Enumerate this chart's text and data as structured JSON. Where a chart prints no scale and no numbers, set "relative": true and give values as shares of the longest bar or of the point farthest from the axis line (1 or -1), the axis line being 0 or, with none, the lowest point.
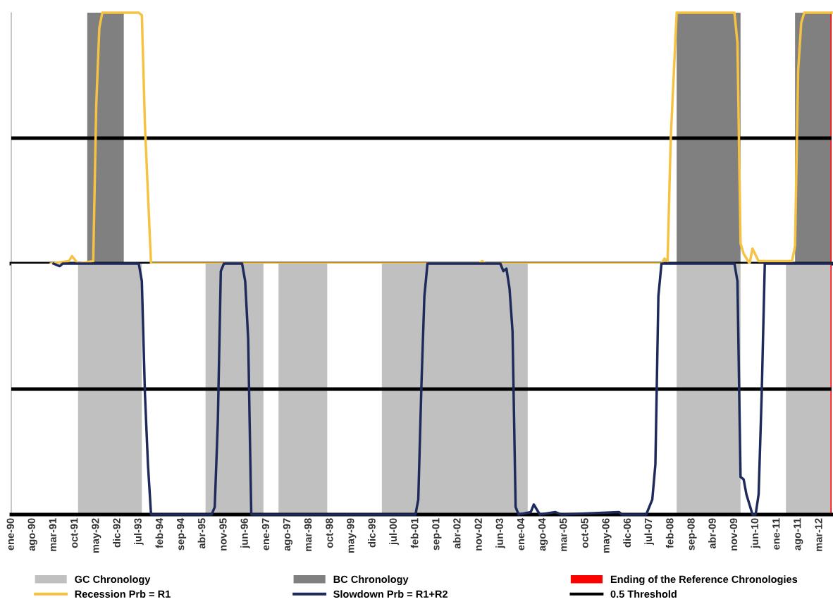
{
  "chart_data": [
    {
      "type": "line",
      "relative": true,
      "xlim": [
        "1990-01",
        "2012-07"
      ],
      "tick_labels": false,
      "grid": false,
      "legend": "bottom",
      "bands": [
        {
          "axis": "x",
          "from": "1992-02",
          "to": "1993-02",
          "label": "BC Chronology",
          "color": "#808080"
        },
        {
          "axis": "x",
          "from": "2008-04",
          "to": "2010-01",
          "color": "#808080"
        },
        {
          "axis": "x",
          "from": "2011-07",
          "to": "2012-07",
          "color": "#808080"
        },
        {
          "axis": "x",
          "from": "2012-06-20",
          "to": "2012-07",
          "label": "Ending of the Reference Chronologies",
          "color": "#ff0000"
        }
      ],
      "ref_lines": [
        {
          "axis": "y",
          "value": 0.5,
          "color": "#000000",
          "line_style": "solid"
        }
      ],
      "series": [
        {
          "name": "Recession Prb = R1",
          "color": "#f5c242",
          "x": [
            "1991-02",
            "1991-08",
            "1991-09",
            "1991-11",
            "1992-04",
            "1992-05",
            "1992-06",
            "1992-07",
            "1993-07",
            "1993-08",
            "1993-09",
            "1993-11",
            "2002-11",
            "2002-12",
            "2003-01",
            "2007-11",
            "2007-12",
            "2008-01",
            "2008-02",
            "2008-04",
            "2009-11",
            "2009-12",
            "2010-01",
            "2010-02",
            "2010-04",
            "2010-05",
            "2010-07",
            "2011-06",
            "2011-07",
            "2011-08",
            "2011-09",
            "2011-10",
            "2012-07"
          ],
          "values": [
            0,
            0.01,
            0.03,
            0,
            0.01,
            0.63,
            0.94,
            1,
            1,
            0.99,
            0.55,
            0,
            0,
            0.01,
            0,
            0,
            0.02,
            0.01,
            0.49,
            1,
            1,
            0.88,
            0.08,
            0.04,
            0,
            0.06,
            0.01,
            0.01,
            0.07,
            0.77,
            0.96,
            1,
            1
          ]
        }
      ]
    },
    {
      "type": "line",
      "relative": true,
      "xlim": [
        "1990-01",
        "2012-07"
      ],
      "tick_labels": "x",
      "grid": false,
      "legend": "bottom",
      "xticks": [
        {
          "value": "1990-01",
          "label": "ene-90"
        },
        {
          "value": "1990-08",
          "label": "ago-90"
        },
        {
          "value": "1991-03",
          "label": "mar-91"
        },
        {
          "value": "1991-10",
          "label": "oct-91"
        },
        {
          "value": "1992-05",
          "label": "may-92"
        },
        {
          "value": "1992-12",
          "label": "dic-92"
        },
        {
          "value": "1993-07",
          "label": "jul-93"
        },
        {
          "value": "1994-02",
          "label": "feb-94"
        },
        {
          "value": "1994-09",
          "label": "sep-94"
        },
        {
          "value": "1995-04",
          "label": "abr-95"
        },
        {
          "value": "1995-11",
          "label": "nov-95"
        },
        {
          "value": "1996-06",
          "label": "jun-96"
        },
        {
          "value": "1997-01",
          "label": "ene-97"
        },
        {
          "value": "1997-08",
          "label": "ago-97"
        },
        {
          "value": "1998-03",
          "label": "mar-98"
        },
        {
          "value": "1998-10",
          "label": "oct-98"
        },
        {
          "value": "1999-05",
          "label": "may-99"
        },
        {
          "value": "1999-12",
          "label": "dic-99"
        },
        {
          "value": "2000-07",
          "label": "jul-00"
        },
        {
          "value": "2001-02",
          "label": "feb-01"
        },
        {
          "value": "2001-09",
          "label": "sep-01"
        },
        {
          "value": "2002-04",
          "label": "abr-02"
        },
        {
          "value": "2002-11",
          "label": "nov-02"
        },
        {
          "value": "2003-06",
          "label": "jun-03"
        },
        {
          "value": "2004-01",
          "label": "ene-04"
        },
        {
          "value": "2004-08",
          "label": "ago-04"
        },
        {
          "value": "2005-03",
          "label": "mar-05"
        },
        {
          "value": "2005-10",
          "label": "oct-05"
        },
        {
          "value": "2006-05",
          "label": "may-06"
        },
        {
          "value": "2006-12",
          "label": "dic-06"
        },
        {
          "value": "2007-07",
          "label": "jul-07"
        },
        {
          "value": "2008-02",
          "label": "feb-08"
        },
        {
          "value": "2008-09",
          "label": "sep-08"
        },
        {
          "value": "2009-04",
          "label": "abr-09"
        },
        {
          "value": "2009-11",
          "label": "nov-09"
        },
        {
          "value": "2010-06",
          "label": "jun-10"
        },
        {
          "value": "2011-01",
          "label": "ene-11"
        },
        {
          "value": "2011-08",
          "label": "ago-11"
        },
        {
          "value": "2012-03",
          "label": "mar-12"
        }
      ],
      "bands": [
        {
          "axis": "x",
          "from": "1991-11",
          "to": "1993-08",
          "label": "GC Chronology",
          "color": "#c0c0c0"
        },
        {
          "axis": "x",
          "from": "1995-05",
          "to": "1996-12",
          "color": "#c0c0c0"
        },
        {
          "axis": "x",
          "from": "1997-05",
          "to": "1998-09",
          "color": "#c0c0c0"
        },
        {
          "axis": "x",
          "from": "2000-03",
          "to": "2004-03",
          "color": "#c0c0c0"
        },
        {
          "axis": "x",
          "from": "2008-04",
          "to": "2010-01",
          "color": "#c0c0c0"
        },
        {
          "axis": "x",
          "from": "2011-04",
          "to": "2012-07",
          "color": "#c0c0c0"
        },
        {
          "axis": "x",
          "from": "2012-06-20",
          "to": "2012-07",
          "color": "#ff0000"
        }
      ],
      "ref_lines": [
        {
          "axis": "y",
          "value": 0.5,
          "label": "0.5 Threshold",
          "color": "#000000",
          "line_style": "solid"
        }
      ],
      "series": [
        {
          "name": "Slowdown Prb = R1+R2",
          "color": "#1f2a5c",
          "x": [
            "1991-03",
            "1991-05",
            "1991-06",
            "1993-07",
            "1993-08",
            "1993-09",
            "1993-10",
            "1993-11",
            "1995-07",
            "1995-08",
            "1995-09",
            "1995-10",
            "1995-11",
            "1996-05",
            "1996-06",
            "1996-07",
            "1996-08",
            "2001-02",
            "2001-03",
            "2001-04",
            "2001-05",
            "2001-06",
            "2003-06",
            "2003-07",
            "2003-08",
            "2003-09",
            "2003-10",
            "2003-11",
            "2003-12",
            "2004-04",
            "2004-05",
            "2004-07",
            "2004-12",
            "2005-02",
            "2006-09",
            "2006-10",
            "2007-06",
            "2007-08",
            "2007-09",
            "2007-10",
            "2007-11",
            "2009-11",
            "2009-12",
            "2010-01",
            "2010-02",
            "2010-03",
            "2010-05",
            "2010-06",
            "2010-07",
            "2010-08",
            "2010-09",
            "2012-07"
          ],
          "values": [
            1,
            0.99,
            1,
            1,
            0.93,
            0.48,
            0.2,
            0,
            0,
            0.03,
            0.37,
            0.97,
            1,
            1,
            0.93,
            0.7,
            0,
            0,
            0.06,
            0.51,
            0.87,
            1,
            1,
            0.97,
            0.98,
            0.9,
            0.73,
            0.03,
            0,
            0.01,
            0.04,
            0,
            0.01,
            0,
            0.01,
            0,
            0,
            0.06,
            0.2,
            0.87,
            1,
            1,
            0.93,
            0.15,
            0.14,
            0.08,
            0,
            0,
            0.08,
            0.48,
            1,
            1
          ]
        }
      ]
    }
  ]
}
